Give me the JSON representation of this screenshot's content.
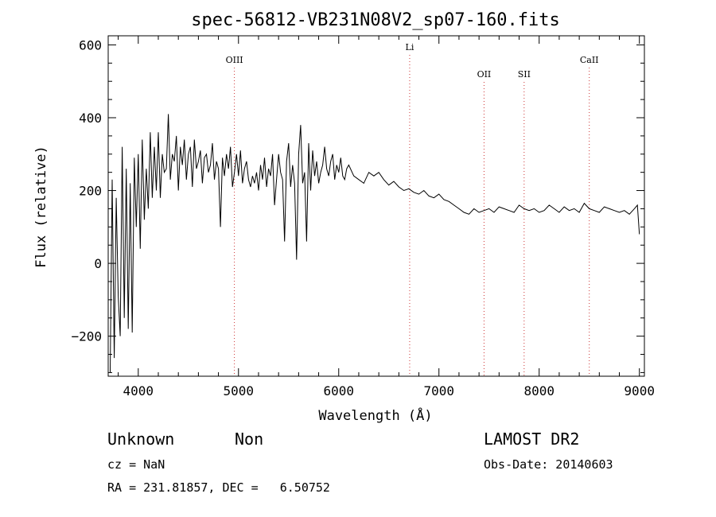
{
  "chart_data": {
    "type": "line",
    "title": "spec-56812-VB231N08V2_sp07-160.fits",
    "xlabel": "Wavelength (Å)",
    "ylabel": "Flux (relative)",
    "xlim": [
      3700,
      9050
    ],
    "ylim": [
      -310,
      625
    ],
    "xticks": [
      4000,
      5000,
      6000,
      7000,
      8000,
      9000
    ],
    "yticks": [
      -200,
      0,
      200,
      400,
      600
    ],
    "grid": false,
    "line_color": "#000000",
    "lines": [
      {
        "name": "OIII",
        "x": 4959
      },
      {
        "name": "Li",
        "x": 6708
      },
      {
        "name": "OII",
        "x": 7450
      },
      {
        "name": "SII",
        "x": 7850
      },
      {
        "name": "CaII",
        "x": 8500
      }
    ],
    "series": [
      {
        "x": [
          3720,
          3740,
          3760,
          3780,
          3800,
          3820,
          3840,
          3860,
          3880,
          3900,
          3920,
          3940,
          3960,
          3980,
          4000,
          4020,
          4040,
          4060,
          4080,
          4100,
          4120,
          4140,
          4160,
          4180,
          4200,
          4220,
          4240,
          4260,
          4280,
          4300,
          4320,
          4340,
          4360,
          4380,
          4400,
          4420,
          4440,
          4460,
          4480,
          4500,
          4520,
          4540,
          4560,
          4580,
          4600,
          4620,
          4640,
          4660,
          4680,
          4700,
          4720,
          4740,
          4760,
          4780,
          4800,
          4820,
          4840,
          4860,
          4880,
          4900,
          4920,
          4940,
          4960,
          4980,
          5000,
          5020,
          5040,
          5060,
          5080,
          5100,
          5120,
          5140,
          5160,
          5180,
          5200,
          5220,
          5240,
          5260,
          5280,
          5300,
          5320,
          5340,
          5360,
          5380,
          5400,
          5420,
          5440,
          5460,
          5480,
          5500,
          5520,
          5540,
          5560,
          5580,
          5600,
          5620,
          5640,
          5660,
          5680,
          5700,
          5720,
          5740,
          5760,
          5780,
          5800,
          5820,
          5840,
          5860,
          5880,
          5900,
          5920,
          5940,
          5960,
          5980,
          6000,
          6020,
          6040,
          6060,
          6080,
          6100,
          6150,
          6200,
          6250,
          6300,
          6350,
          6400,
          6450,
          6500,
          6550,
          6600,
          6650,
          6700,
          6750,
          6800,
          6850,
          6900,
          6950,
          7000,
          7050,
          7100,
          7150,
          7200,
          7250,
          7300,
          7350,
          7400,
          7450,
          7500,
          7550,
          7600,
          7650,
          7700,
          7750,
          7800,
          7850,
          7900,
          7950,
          8000,
          8050,
          8100,
          8150,
          8200,
          8250,
          8300,
          8350,
          8400,
          8450,
          8500,
          8550,
          8600,
          8650,
          8700,
          8750,
          8800,
          8850,
          8900,
          8950,
          8980,
          9000
        ],
        "y": [
          -300,
          230,
          -260,
          180,
          -90,
          -200,
          320,
          -150,
          260,
          -180,
          220,
          -190,
          290,
          100,
          300,
          40,
          340,
          120,
          260,
          150,
          360,
          180,
          320,
          200,
          360,
          180,
          300,
          250,
          260,
          410,
          230,
          300,
          280,
          350,
          200,
          320,
          270,
          340,
          230,
          300,
          320,
          210,
          340,
          260,
          280,
          310,
          220,
          290,
          300,
          250,
          270,
          330,
          230,
          280,
          260,
          100,
          290,
          240,
          300,
          260,
          320,
          210,
          250,
          300,
          240,
          310,
          220,
          260,
          280,
          230,
          210,
          240,
          220,
          250,
          200,
          270,
          230,
          290,
          210,
          260,
          240,
          300,
          160,
          230,
          300,
          250,
          230,
          60,
          280,
          330,
          210,
          270,
          220,
          10,
          300,
          380,
          220,
          250,
          60,
          330,
          200,
          310,
          240,
          280,
          220,
          250,
          270,
          320,
          260,
          240,
          280,
          300,
          230,
          270,
          250,
          290,
          240,
          230,
          260,
          270,
          240,
          230,
          220,
          250,
          240,
          250,
          230,
          215,
          225,
          210,
          200,
          205,
          195,
          190,
          200,
          185,
          180,
          190,
          175,
          170,
          160,
          150,
          140,
          135,
          150,
          140,
          145,
          150,
          140,
          155,
          150,
          145,
          140,
          160,
          150,
          145,
          150,
          140,
          145,
          160,
          150,
          140,
          155,
          145,
          150,
          140,
          165,
          150,
          145,
          140,
          155,
          150,
          145,
          140,
          145,
          135,
          150,
          160,
          80
        ]
      }
    ]
  },
  "footer": {
    "object_class": "Unknown",
    "object_subclass": "Non",
    "survey": "LAMOST DR2",
    "cz": "cz = NaN",
    "obs_date": "Obs-Date: 20140603",
    "radec": "RA = 231.81857, DEC =   6.50752"
  }
}
